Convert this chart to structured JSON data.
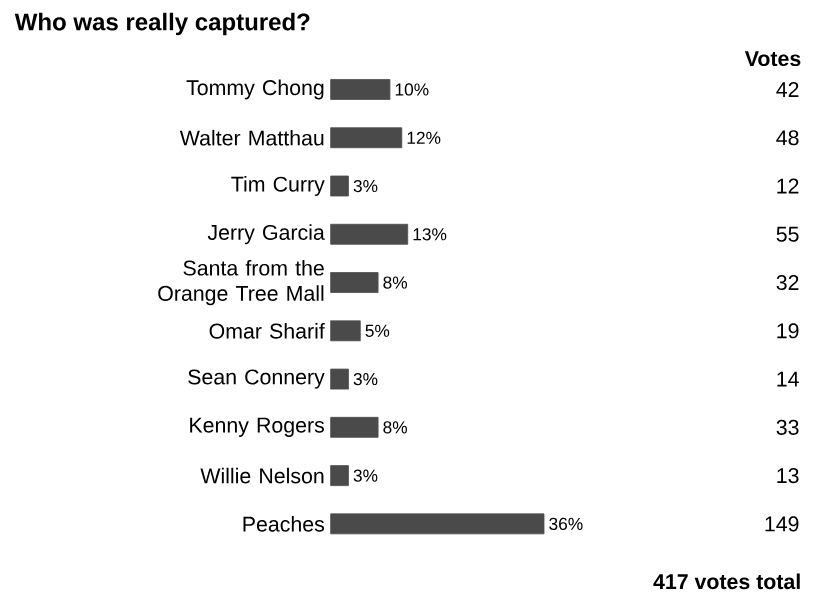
{
  "chart_data": {
    "type": "bar",
    "orientation": "horizontal",
    "title": "Who was really captured?",
    "categories": [
      "Tommy Chong",
      "Walter Matthau",
      "Tim Curry",
      "Jerry Garcia",
      "Santa from the Orange Tree Mall",
      "Omar Sharif",
      "Sean Connery",
      "Kenny Rogers",
      "Willie Nelson",
      "Peaches"
    ],
    "values": [
      10,
      12,
      3,
      13,
      8,
      5,
      3,
      8,
      3,
      36
    ],
    "value_labels": [
      "10%",
      "12%",
      "3%",
      "13%",
      "8%",
      "5%",
      "3%",
      "8%",
      "3%",
      "36%"
    ],
    "color": "#4a4a4a",
    "annotations": [
      "Votes",
      "42",
      "48",
      "12",
      "55",
      "32",
      "19",
      "14",
      "33",
      "13",
      "149",
      "417 votes total"
    ]
  }
}
